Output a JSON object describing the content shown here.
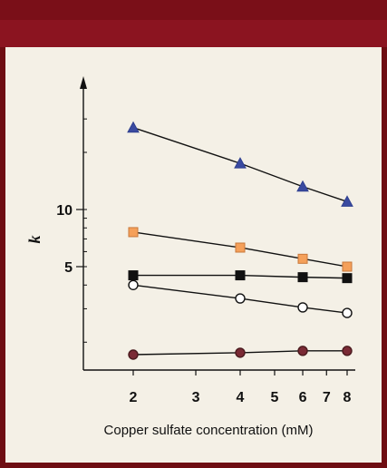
{
  "chart_data": {
    "type": "line",
    "xlabel": "Copper sulfate concentration (mM)",
    "ylabel": "k",
    "x_scale": "log",
    "y_scale": "log",
    "xlim": [
      2,
      8
    ],
    "ylim": [
      1.3,
      40
    ],
    "x_ticks": [
      "2",
      "3",
      "4",
      "5",
      "6",
      "7",
      "8"
    ],
    "y_ticks": [
      "5",
      "10"
    ],
    "x": [
      2,
      4,
      6,
      8
    ],
    "series": [
      {
        "marker": "triangle",
        "color": "#2e3f8f",
        "fill": "#3a4aa0",
        "values": [
          27,
          17.5,
          13.2,
          11
        ]
      },
      {
        "marker": "square",
        "color": "#111111",
        "fill": "#f5a05a",
        "values": [
          7.6,
          6.3,
          5.5,
          5
        ]
      },
      {
        "marker": "square",
        "color": "#111111",
        "fill": "#111111",
        "values": [
          4.5,
          4.5,
          4.4,
          4.35
        ]
      },
      {
        "marker": "circle",
        "color": "#111111",
        "fill": "#ffffff",
        "values": [
          4,
          3.4,
          3.05,
          2.85
        ]
      },
      {
        "marker": "circle",
        "color": "#4a1a1e",
        "fill": "#7a2a35",
        "values": [
          1.72,
          1.76,
          1.8,
          1.8
        ]
      }
    ]
  }
}
